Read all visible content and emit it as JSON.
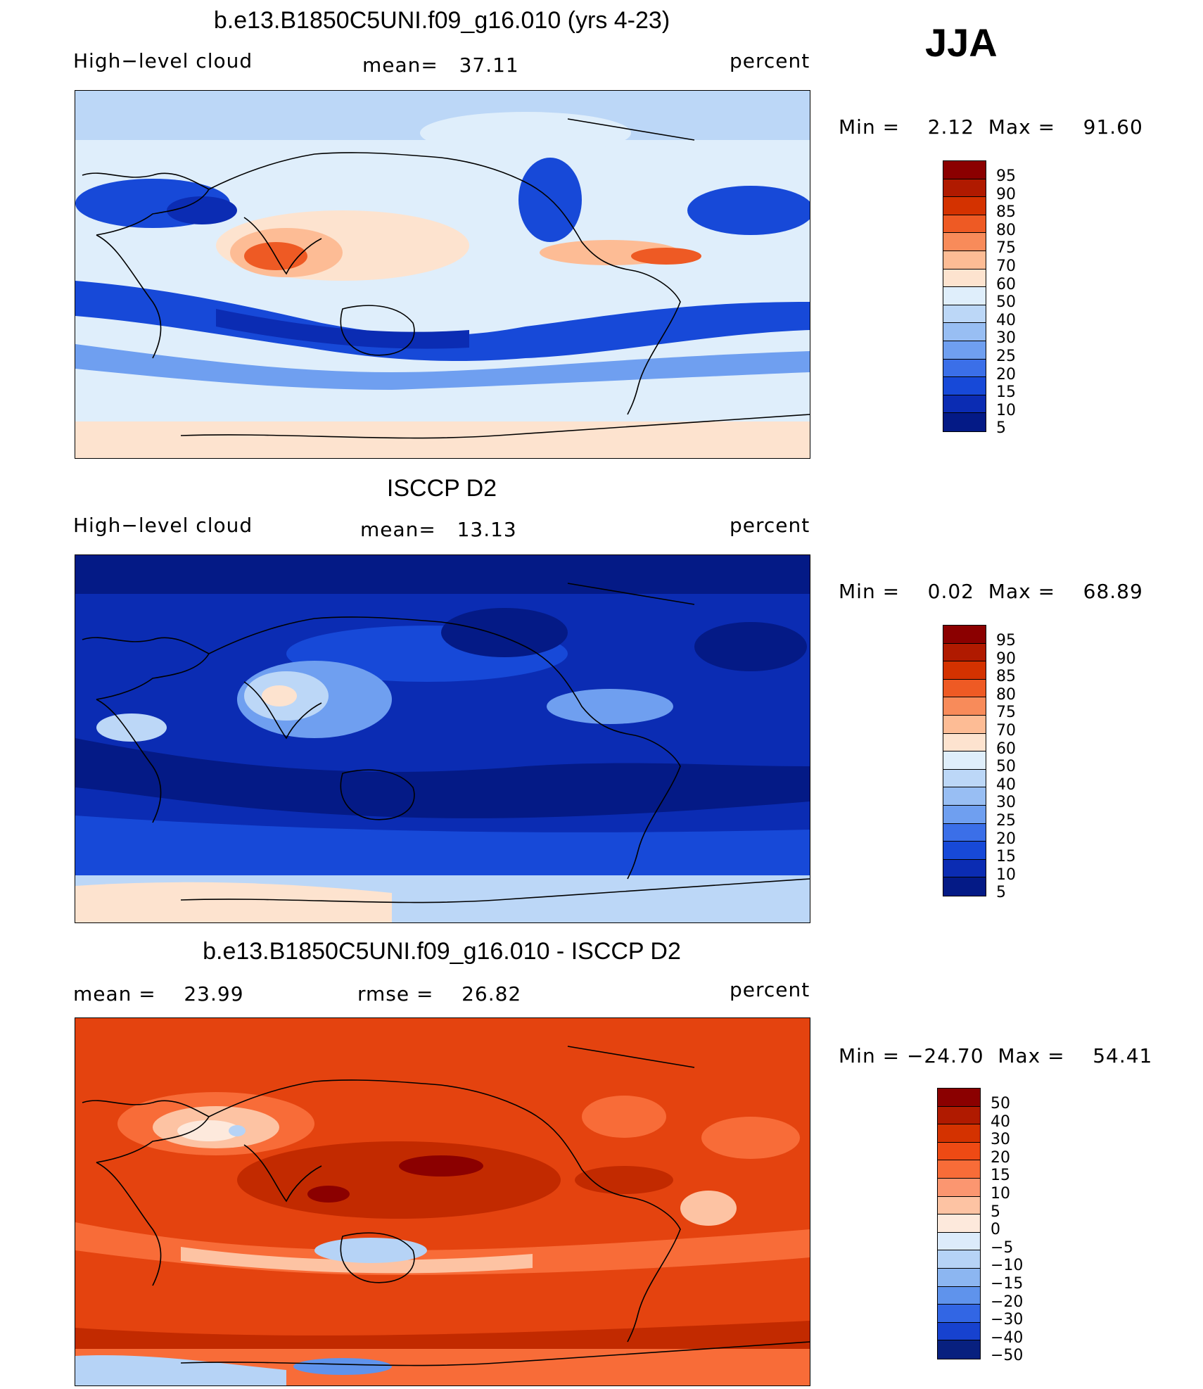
{
  "season": "JJA",
  "units": "percent",
  "panels": [
    {
      "title": "b.e13.B1850C5UNI.f09_g16.010 (yrs 4-23)",
      "variable": "High−level cloud",
      "stat_text": "mean=   37.11",
      "units": "percent",
      "minmax": "Min =    2.12  Max =    91.60",
      "colorbar": {
        "labels": [
          "95",
          "90",
          "85",
          "80",
          "75",
          "70",
          "60",
          "50",
          "40",
          "30",
          "25",
          "20",
          "15",
          "10",
          "5"
        ],
        "colors": [
          "#8b0000",
          "#b01a00",
          "#d43200",
          "#ee5a24",
          "#f88b5a",
          "#fdbc95",
          "#fde3cf",
          "#dfeefb",
          "#bcd7f7",
          "#98bef3",
          "#6f9ff0",
          "#3b6fe8",
          "#1749d8",
          "#0b2cb3",
          "#041a86"
        ]
      },
      "map_colors": {
        "base": "#dfeefb",
        "polar": "#bcd7f7",
        "dry": "#1749d8",
        "deep": "#0b2cb3",
        "mid": "#6f9ff0",
        "warm": "#fde3cf",
        "hot": "#fdbc95",
        "red": "#ee5a24"
      }
    },
    {
      "title": "ISCCP D2",
      "variable": "High−level cloud",
      "stat_text": "mean=   13.13",
      "units": "percent",
      "minmax": "Min =    0.02  Max =    68.89",
      "colorbar": {
        "labels": [
          "95",
          "90",
          "85",
          "80",
          "75",
          "70",
          "60",
          "50",
          "40",
          "30",
          "25",
          "20",
          "15",
          "10",
          "5"
        ],
        "colors": [
          "#8b0000",
          "#b01a00",
          "#d43200",
          "#ee5a24",
          "#f88b5a",
          "#fdbc95",
          "#fde3cf",
          "#dfeefb",
          "#bcd7f7",
          "#98bef3",
          "#6f9ff0",
          "#3b6fe8",
          "#1749d8",
          "#0b2cb3",
          "#041a86"
        ]
      },
      "map_colors": {
        "base": "#0b2cb3",
        "deep": "#041a86",
        "mid": "#1749d8",
        "light": "#6f9ff0",
        "pale": "#bcd7f7",
        "warm": "#fde3cf"
      }
    },
    {
      "title": "b.e13.B1850C5UNI.f09_g16.010 - ISCCP D2",
      "stat_left": "mean =    23.99",
      "stat_mid": "rmse =    26.82",
      "units": "percent",
      "minmax": "Min = −24.70  Max =    54.41",
      "colorbar": {
        "labels": [
          "50",
          "40",
          "30",
          "20",
          "15",
          "10",
          "5",
          "0",
          "−5",
          "−10",
          "−15",
          "−20",
          "−30",
          "−40",
          "−50"
        ],
        "colors": [
          "#8b0000",
          "#b01a00",
          "#d43200",
          "#ee4a14",
          "#f86c38",
          "#fb9670",
          "#fdc3a3",
          "#fde9dc",
          "#dcebfb",
          "#b6d3f6",
          "#8cb6f1",
          "#5f93ec",
          "#3266e4",
          "#1742cf",
          "#08207f"
        ]
      },
      "map_colors": {
        "base": "#e4430f",
        "dark": "#c22a00",
        "deep": "#8b0000",
        "light": "#f86c38",
        "pale": "#fdc3a3",
        "white": "#fde9dc",
        "blue": "#b6d3f6",
        "bluer": "#5f93ec"
      }
    }
  ]
}
